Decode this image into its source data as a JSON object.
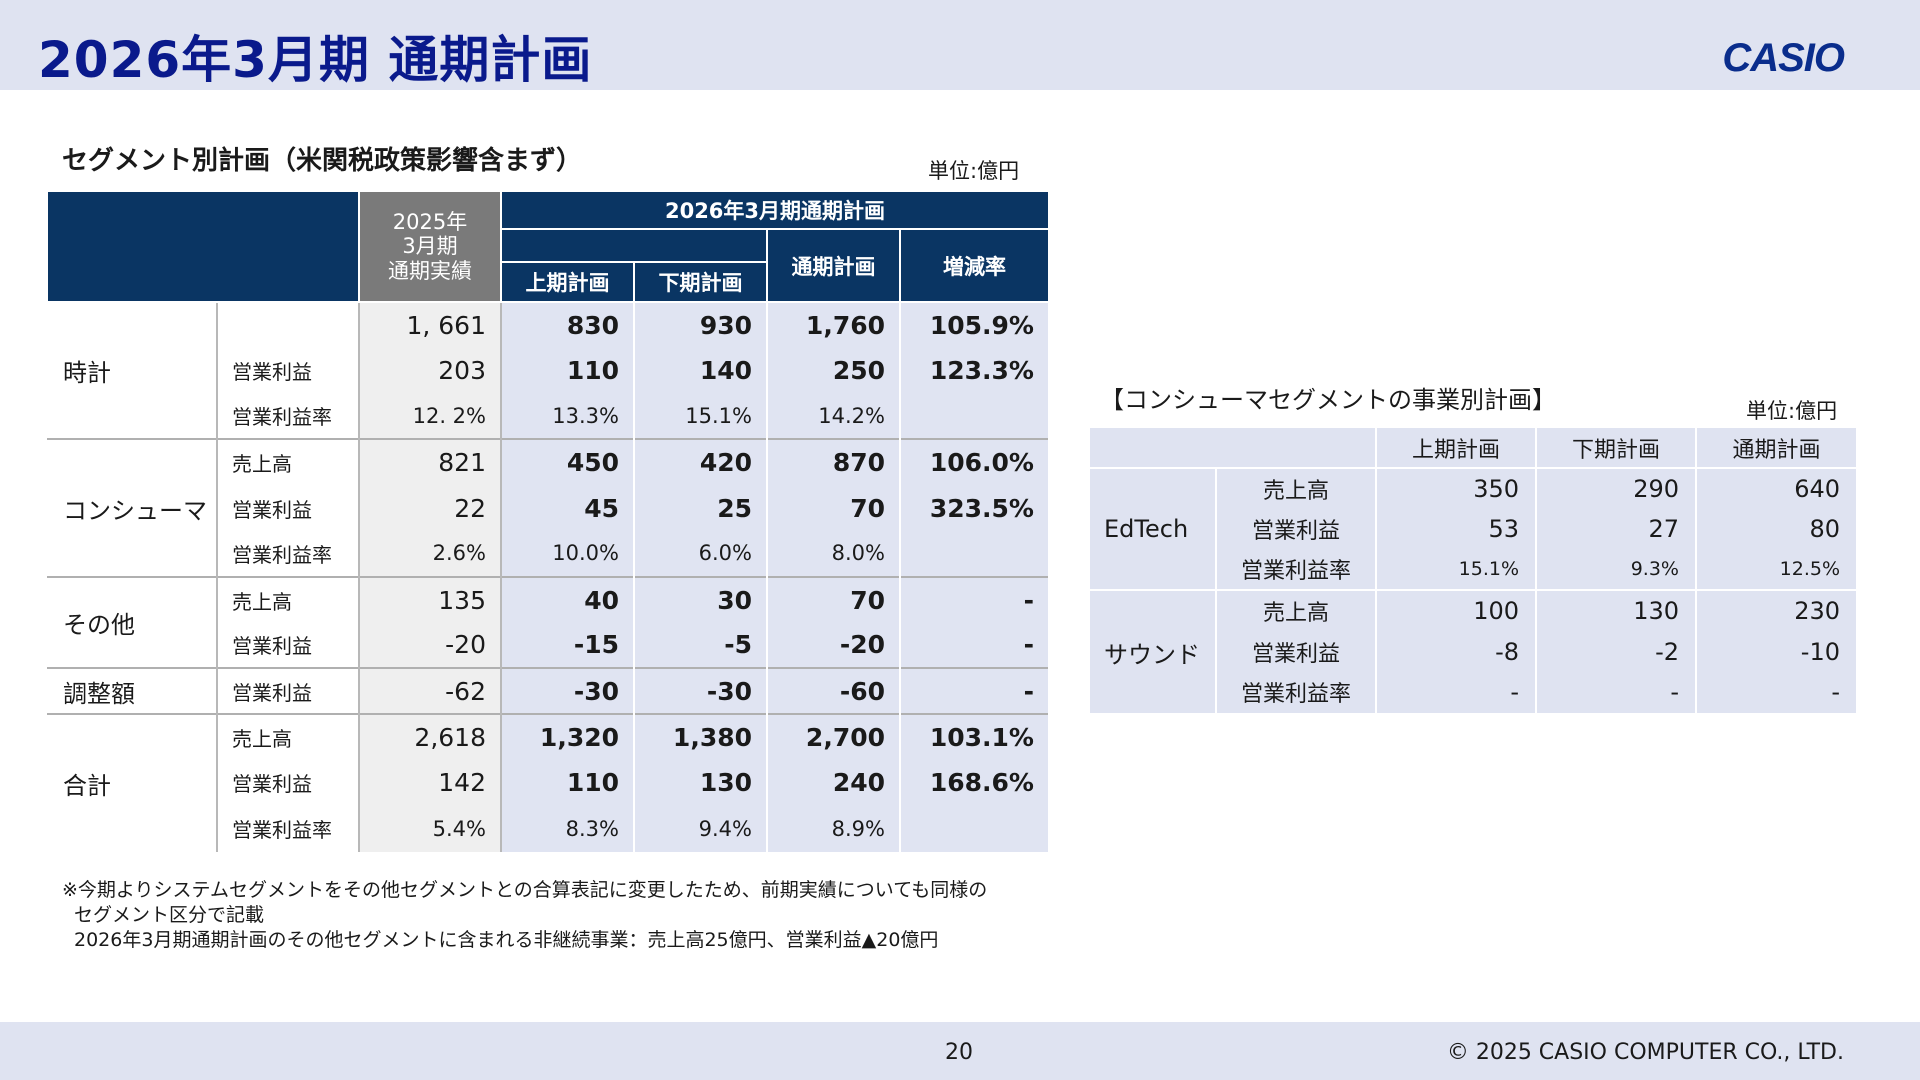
{
  "header": {
    "title": "2026年3月期 通期計画",
    "logo": "CASIO"
  },
  "segment": {
    "title": "セグメント別計画（米関税政策影響含まず）",
    "unit": "単位:億円",
    "headers": {
      "prev": "2025年\n3月期\n通期実績",
      "plan_group": "2026年3月期通期計画",
      "h1": "上期計画",
      "h2": "下期計画",
      "full": "通期計画",
      "growth": "増減率"
    },
    "rows": [
      {
        "group": "時計",
        "metric": "",
        "prev": "1, 661",
        "h1": "830",
        "h2": "930",
        "full": "1,760",
        "growth": "105.9%"
      },
      {
        "group": "",
        "metric": "営業利益",
        "prev": "203",
        "h1": "110",
        "h2": "140",
        "full": "250",
        "growth": "123.3%"
      },
      {
        "group": "",
        "metric": "営業利益率",
        "prev": "12. 2%",
        "h1": "13.3%",
        "h2": "15.1%",
        "full": "14.2%",
        "growth": ""
      },
      {
        "group": "コンシューマ",
        "metric": "売上高",
        "prev": "821",
        "h1": "450",
        "h2": "420",
        "full": "870",
        "growth": "106.0%"
      },
      {
        "group": "",
        "metric": "営業利益",
        "prev": "22",
        "h1": "45",
        "h2": "25",
        "full": "70",
        "growth": "323.5%"
      },
      {
        "group": "",
        "metric": "営業利益率",
        "prev": "2.6%",
        "h1": "10.0%",
        "h2": "6.0%",
        "full": "8.0%",
        "growth": ""
      },
      {
        "group": "その他",
        "metric": "売上高",
        "prev": "135",
        "h1": "40",
        "h2": "30",
        "full": "70",
        "growth": "-"
      },
      {
        "group": "",
        "metric": "営業利益",
        "prev": "-20",
        "h1": "-15",
        "h2": "-5",
        "full": "-20",
        "growth": "-"
      },
      {
        "group": "調整額",
        "metric": "営業利益",
        "prev": "-62",
        "h1": "-30",
        "h2": "-30",
        "full": "-60",
        "growth": "-"
      },
      {
        "group": "合計",
        "metric": "売上高",
        "prev": "2,618",
        "h1": "1,320",
        "h2": "1,380",
        "full": "2,700",
        "growth": "103.1%"
      },
      {
        "group": "",
        "metric": "営業利益",
        "prev": "142",
        "h1": "110",
        "h2": "130",
        "full": "240",
        "growth": "168.6%"
      },
      {
        "group": "",
        "metric": "営業利益率",
        "prev": "5.4%",
        "h1": "8.3%",
        "h2": "9.4%",
        "full": "8.9%",
        "growth": ""
      }
    ]
  },
  "consumer": {
    "title": "【コンシューマセグメントの事業別計画】",
    "unit": "単位:億円",
    "headers": {
      "h1": "上期計画",
      "h2": "下期計画",
      "full": "通期計画"
    },
    "rows": [
      {
        "group": "EdTech",
        "metric": "売上高",
        "h1": "350",
        "h2": "290",
        "full": "640"
      },
      {
        "group": "",
        "metric": "営業利益",
        "h1": "53",
        "h2": "27",
        "full": "80"
      },
      {
        "group": "",
        "metric": "営業利益率",
        "h1": "15.1%",
        "h2": "9.3%",
        "full": "12.5%"
      },
      {
        "group": "サウンド",
        "metric": "売上高",
        "h1": "100",
        "h2": "130",
        "full": "230"
      },
      {
        "group": "",
        "metric": "営業利益",
        "h1": "-8",
        "h2": "-2",
        "full": "-10"
      },
      {
        "group": "",
        "metric": "営業利益率",
        "h1": "-",
        "h2": "-",
        "full": "-"
      }
    ]
  },
  "notes": [
    "※今期よりシステムセグメントをその他セグメントとの合算表記に変更したため、前期実績についても同様の",
    "セグメント区分で記載",
    "2026年3月期通期計画のその他セグメントに含まれる非継続事業：売上高25億円、営業利益▲20億円"
  ],
  "footer": {
    "page_number": "20",
    "copyright": "© 2025 CASIO COMPUTER CO., LTD."
  }
}
